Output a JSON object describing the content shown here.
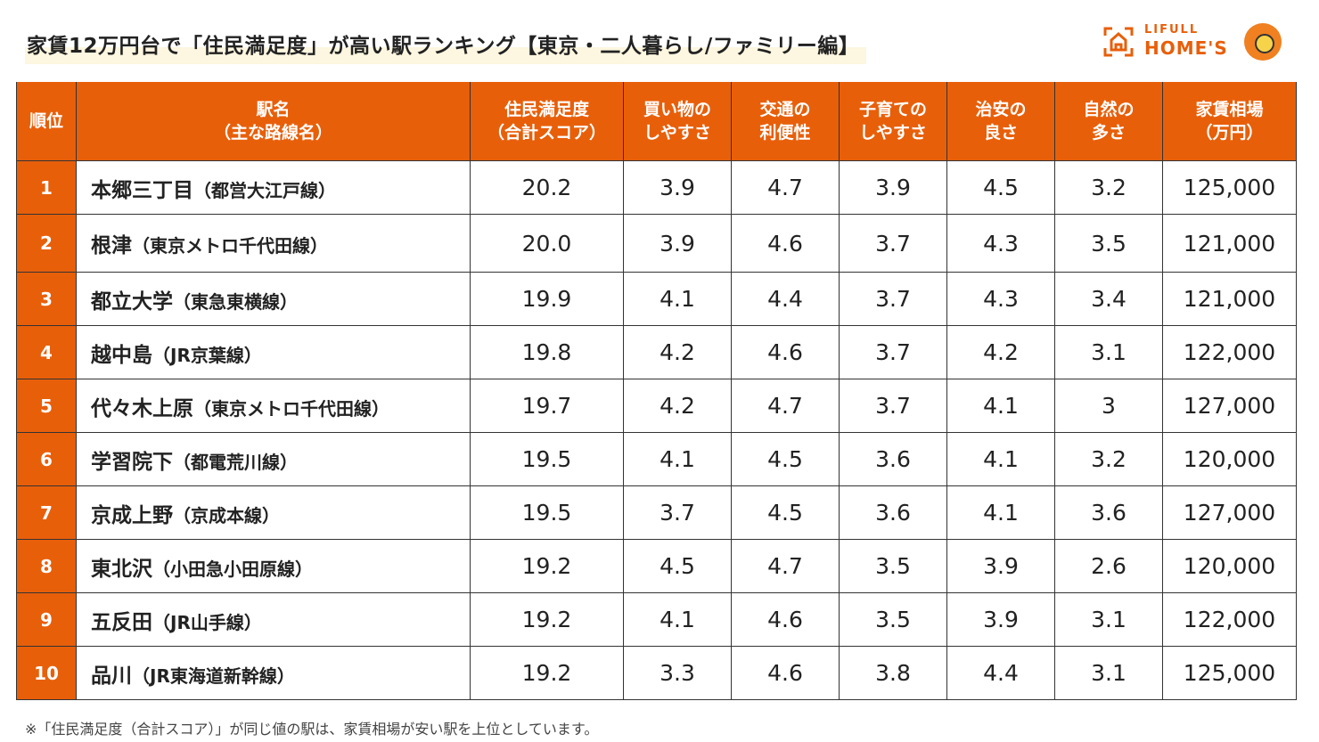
{
  "title": "家賃12万円台で「住民満足度」が高い駅ランキング【東京・二人暮らし/ファミリー編】",
  "logo": {
    "line1": "LIFULL",
    "line2": "HOME'S",
    "icon": "house-icon"
  },
  "colors": {
    "accent": "#e85f0a"
  },
  "headers": [
    {
      "l1": "順位",
      "l2": ""
    },
    {
      "l1": "駅名",
      "l2": "（主な路線名）"
    },
    {
      "l1": "住民満足度",
      "l2": "（合計スコア）"
    },
    {
      "l1": "買い物の",
      "l2": "しやすさ"
    },
    {
      "l1": "交通の",
      "l2": "利便性"
    },
    {
      "l1": "子育ての",
      "l2": "しやすさ"
    },
    {
      "l1": "治安の",
      "l2": "良さ"
    },
    {
      "l1": "自然の",
      "l2": "多さ"
    },
    {
      "l1": "家賃相場",
      "l2": "（万円）"
    }
  ],
  "rows": [
    {
      "rank": "1",
      "station": "本郷三丁目",
      "line": "（都営大江戸線）",
      "total": "20.2",
      "shop": "3.9",
      "transit": "4.7",
      "child": "3.9",
      "safety": "4.5",
      "nature": "3.2",
      "rent": "125,000"
    },
    {
      "rank": "2",
      "station": "根津",
      "line": "（東京メトロ千代田線）",
      "total": "20.0",
      "shop": "3.9",
      "transit": "4.6",
      "child": "3.7",
      "safety": "4.3",
      "nature": "3.5",
      "rent": "121,000"
    },
    {
      "rank": "3",
      "station": "都立大学",
      "line": "（東急東横線）",
      "total": "19.9",
      "shop": "4.1",
      "transit": "4.4",
      "child": "3.7",
      "safety": "4.3",
      "nature": "3.4",
      "rent": "121,000"
    },
    {
      "rank": "4",
      "station": "越中島",
      "line": "（JR京葉線）",
      "total": "19.8",
      "shop": "4.2",
      "transit": "4.6",
      "child": "3.7",
      "safety": "4.2",
      "nature": "3.1",
      "rent": "122,000"
    },
    {
      "rank": "5",
      "station": "代々木上原",
      "line": "（東京メトロ千代田線）",
      "total": "19.7",
      "shop": "4.2",
      "transit": "4.7",
      "child": "3.7",
      "safety": "4.1",
      "nature": "3",
      "rent": "127,000"
    },
    {
      "rank": "6",
      "station": "学習院下",
      "line": "（都電荒川線）",
      "total": "19.5",
      "shop": "4.1",
      "transit": "4.5",
      "child": "3.6",
      "safety": "4.1",
      "nature": "3.2",
      "rent": "120,000"
    },
    {
      "rank": "7",
      "station": "京成上野",
      "line": "（京成本線）",
      "total": "19.5",
      "shop": "3.7",
      "transit": "4.5",
      "child": "3.6",
      "safety": "4.1",
      "nature": "3.6",
      "rent": "127,000"
    },
    {
      "rank": "8",
      "station": "東北沢",
      "line": "（小田急小田原線）",
      "total": "19.2",
      "shop": "4.5",
      "transit": "4.7",
      "child": "3.5",
      "safety": "3.9",
      "nature": "2.6",
      "rent": "120,000"
    },
    {
      "rank": "9",
      "station": "五反田",
      "line": "（JR山手線）",
      "total": "19.2",
      "shop": "4.1",
      "transit": "4.6",
      "child": "3.5",
      "safety": "3.9",
      "nature": "3.1",
      "rent": "122,000"
    },
    {
      "rank": "10",
      "station": "品川",
      "line": "（JR東海道新幹線）",
      "total": "19.2",
      "shop": "3.3",
      "transit": "4.6",
      "child": "3.8",
      "safety": "4.4",
      "nature": "3.1",
      "rent": "125,000"
    }
  ],
  "note": "※「住民満足度（合計スコア）」が同じ値の駅は、家賃相場が安い駅を上位としています。"
}
